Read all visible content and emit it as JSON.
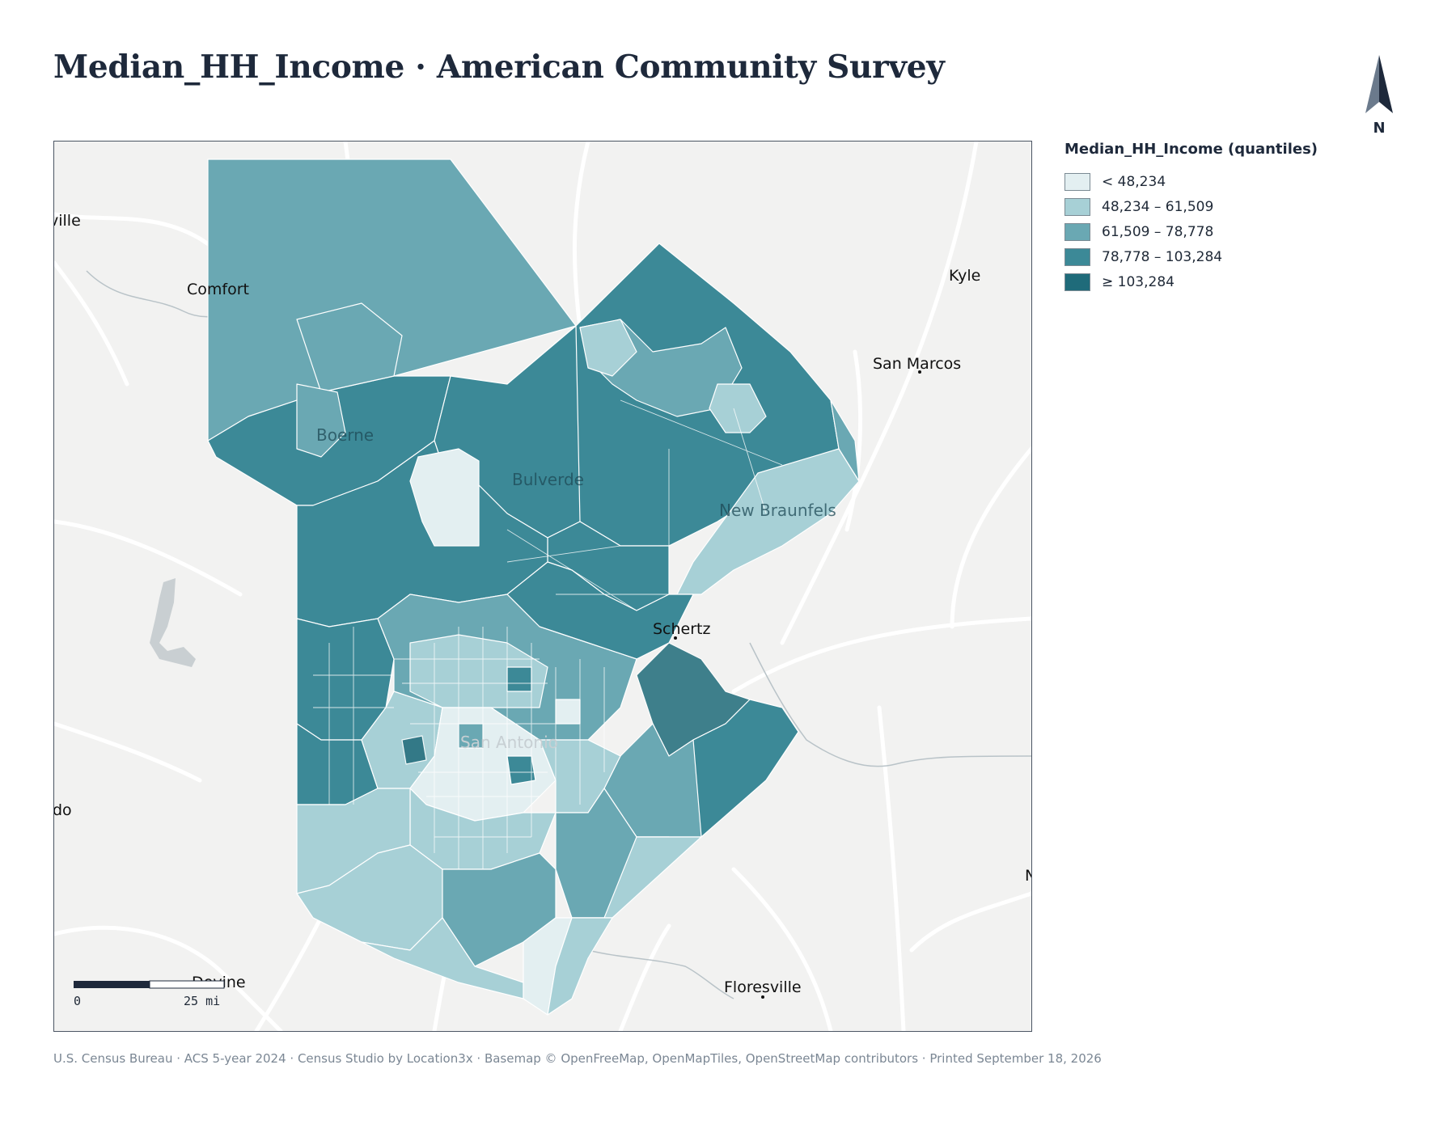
{
  "title": "Median_HH_Income · American Community Survey",
  "north": {
    "label": "N",
    "icon": "north-arrow-icon"
  },
  "legend": {
    "title": "Median_HH_Income (quantiles)",
    "items": [
      {
        "label": "< 48,234",
        "color": "#e3eff1"
      },
      {
        "label": "48,234 – 61,509",
        "color": "#a7d0d6"
      },
      {
        "label": "61,509 – 78,778",
        "color": "#6aa8b3"
      },
      {
        "label": "78,778 – 103,284",
        "color": "#3c8997"
      },
      {
        "label": "≥ 103,284",
        "color": "#1f6b7a"
      }
    ]
  },
  "map": {
    "places": {
      "kerrville": "ville",
      "comfort": "Comfort",
      "kyle": "Kyle",
      "san_marcos": "San Marcos",
      "boerne": "Boerne",
      "bulverde": "Bulverde",
      "new_braunfels": "New Braunfels",
      "schertz": "Schertz",
      "san_antonio": "San Antonio",
      "laredo": "do",
      "devine": "Devine",
      "floresville": "Floresville",
      "edge_n": "N"
    },
    "scale": {
      "start": "0",
      "end": "25 mi"
    }
  },
  "footer": "U.S. Census Bureau · ACS 5-year 2024 · Census Studio by Location3x · Basemap © OpenFreeMap, OpenMapTiles, OpenStreetMap contributors · Printed September 18, 2026"
}
